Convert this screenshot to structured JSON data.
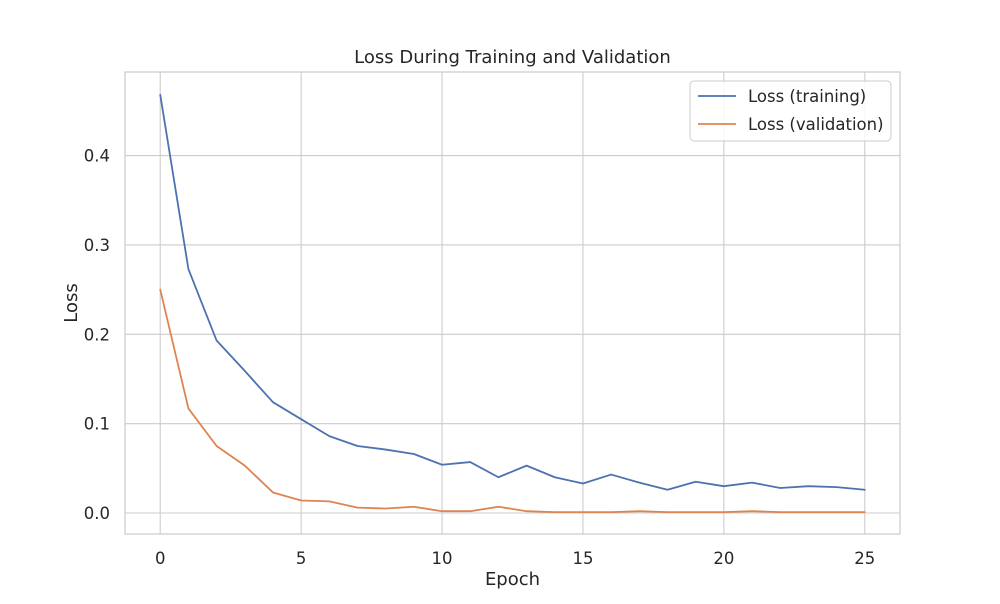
{
  "chart_data": {
    "type": "line",
    "title": "Loss During Training and Validation",
    "xlabel": "Epoch",
    "ylabel": "Loss",
    "xlim": [
      -1.25,
      26.25
    ],
    "ylim": [
      -0.0235,
      0.4935
    ],
    "xticks": [
      0,
      5,
      10,
      15,
      20,
      25
    ],
    "xtick_labels": [
      "0",
      "5",
      "10",
      "15",
      "20",
      "25"
    ],
    "yticks": [
      0.0,
      0.1,
      0.2,
      0.3,
      0.4
    ],
    "ytick_labels": [
      "0.0",
      "0.1",
      "0.2",
      "0.3",
      "0.4"
    ],
    "grid": true,
    "legend_position": "top-right",
    "x": [
      0,
      1,
      2,
      3,
      4,
      5,
      6,
      7,
      8,
      9,
      10,
      11,
      12,
      13,
      14,
      15,
      16,
      17,
      18,
      19,
      20,
      21,
      22,
      23,
      24,
      25
    ],
    "series": [
      {
        "name": "Loss (training)",
        "color": "#4c72b0",
        "values": [
          0.468,
          0.273,
          0.193,
          0.159,
          0.124,
          0.105,
          0.086,
          0.075,
          0.071,
          0.066,
          0.054,
          0.057,
          0.04,
          0.053,
          0.04,
          0.033,
          0.043,
          0.034,
          0.026,
          0.035,
          0.03,
          0.034,
          0.028,
          0.03,
          0.029,
          0.026
        ]
      },
      {
        "name": "Loss (validation)",
        "color": "#dd8452",
        "values": [
          0.25,
          0.117,
          0.075,
          0.053,
          0.023,
          0.014,
          0.013,
          0.006,
          0.005,
          0.007,
          0.002,
          0.002,
          0.007,
          0.002,
          0.001,
          0.001,
          0.001,
          0.002,
          0.001,
          0.001,
          0.001,
          0.002,
          0.001,
          0.001,
          0.001,
          0.001
        ]
      }
    ]
  }
}
